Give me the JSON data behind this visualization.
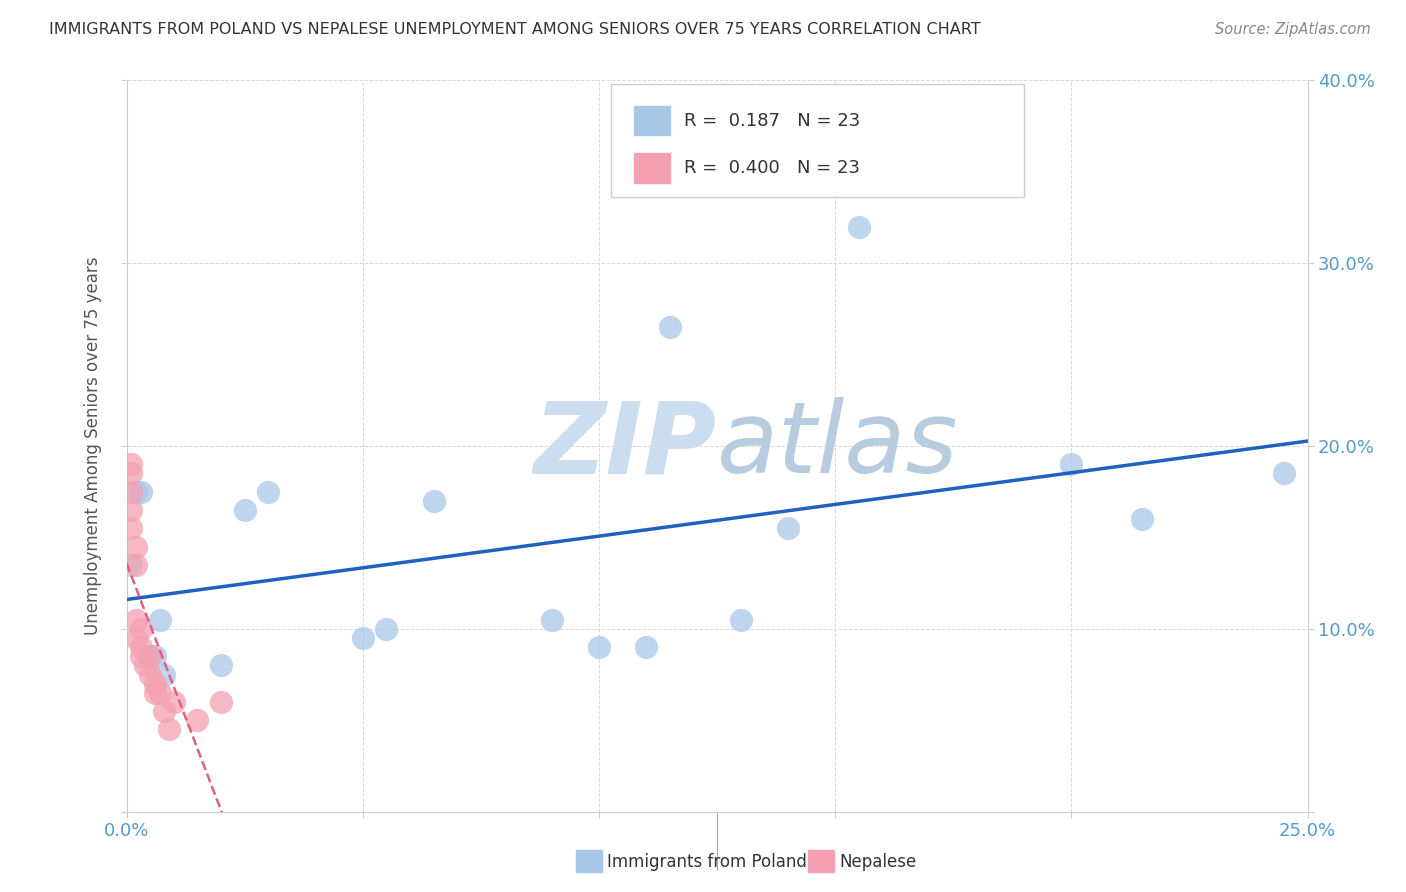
{
  "title": "IMMIGRANTS FROM POLAND VS NEPALESE UNEMPLOYMENT AMONG SENIORS OVER 75 YEARS CORRELATION CHART",
  "source": "Source: ZipAtlas.com",
  "ylabel": "Unemployment Among Seniors over 75 years",
  "xlim": [
    0,
    0.25
  ],
  "ylim": [
    0,
    0.4
  ],
  "poland_R": 0.187,
  "poland_N": 23,
  "nepalese_R": 0.4,
  "nepalese_N": 23,
  "poland_color": "#a8c8e8",
  "nepalese_color": "#f4a0b0",
  "poland_line_color": "#2060c0",
  "nepalese_line_color": "#e06080",
  "poland_x": [
    0.001,
    0.002,
    0.003,
    0.005,
    0.006,
    0.007,
    0.008,
    0.02,
    0.025,
    0.03,
    0.05,
    0.055,
    0.065,
    0.09,
    0.1,
    0.11,
    0.115,
    0.13,
    0.14,
    0.155,
    0.2,
    0.215,
    0.245
  ],
  "poland_y": [
    0.135,
    0.175,
    0.175,
    0.085,
    0.085,
    0.105,
    0.075,
    0.08,
    0.165,
    0.175,
    0.095,
    0.1,
    0.17,
    0.105,
    0.09,
    0.09,
    0.265,
    0.105,
    0.155,
    0.32,
    0.19,
    0.16,
    0.185
  ],
  "nepalese_x": [
    0.001,
    0.001,
    0.001,
    0.001,
    0.001,
    0.002,
    0.002,
    0.002,
    0.002,
    0.003,
    0.003,
    0.003,
    0.004,
    0.005,
    0.005,
    0.006,
    0.006,
    0.007,
    0.008,
    0.009,
    0.01,
    0.015,
    0.02
  ],
  "nepalese_y": [
    0.19,
    0.185,
    0.175,
    0.165,
    0.155,
    0.145,
    0.135,
    0.105,
    0.095,
    0.1,
    0.09,
    0.085,
    0.08,
    0.085,
    0.075,
    0.07,
    0.065,
    0.065,
    0.055,
    0.045,
    0.06,
    0.05,
    0.06
  ],
  "watermark_zip": "ZIP",
  "watermark_atlas": "atlas",
  "watermark_color_zip": "#ddeeff",
  "watermark_color_atlas": "#c8ddf0",
  "background_color": "#ffffff",
  "grid_color": "#d8d8d8"
}
